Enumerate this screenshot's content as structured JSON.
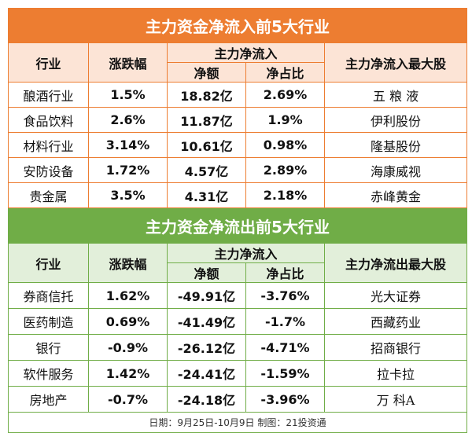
{
  "inflow": {
    "title": "主力资金净流入前5大行业",
    "headers": {
      "industry": "行业",
      "change": "涨跌幅",
      "group": "主力净流入",
      "amount": "净额",
      "ratio": "净占比",
      "top_stock": "主力净流入最大股"
    },
    "rows": [
      {
        "industry": "酿酒行业",
        "change": "1.5%",
        "amount": "18.82亿",
        "ratio": "2.69%",
        "top_stock": "五 粮 液"
      },
      {
        "industry": "食品饮料",
        "change": "2.6%",
        "amount": "11.87亿",
        "ratio": "1.9%",
        "top_stock": "伊利股份"
      },
      {
        "industry": "材料行业",
        "change": "3.14%",
        "amount": "10.61亿",
        "ratio": "0.98%",
        "top_stock": "隆基股份"
      },
      {
        "industry": "安防设备",
        "change": "1.72%",
        "amount": "4.57亿",
        "ratio": "2.89%",
        "top_stock": "海康威视"
      },
      {
        "industry": "贵金属",
        "change": "3.5%",
        "amount": "4.31亿",
        "ratio": "2.18%",
        "top_stock": "赤峰黄金"
      }
    ]
  },
  "outflow": {
    "title": "主力资金净流出前5大行业",
    "headers": {
      "industry": "行业",
      "change": "涨跌幅",
      "group": "主力净流入",
      "amount": "净额",
      "ratio": "净占比",
      "top_stock": "主力净流出最大股"
    },
    "rows": [
      {
        "industry": "券商信托",
        "change": "1.62%",
        "amount": "-49.91亿",
        "ratio": "-3.76%",
        "top_stock": "光大证券"
      },
      {
        "industry": "医药制造",
        "change": "0.69%",
        "amount": "-41.49亿",
        "ratio": "-1.7%",
        "top_stock": "西藏药业"
      },
      {
        "industry": "银行",
        "change": "-0.9%",
        "amount": "-26.12亿",
        "ratio": "-4.71%",
        "top_stock": "招商银行"
      },
      {
        "industry": "软件服务",
        "change": "1.42%",
        "amount": "-24.41亿",
        "ratio": "-1.59%",
        "top_stock": "拉卡拉"
      },
      {
        "industry": "房地产",
        "change": "-0.7%",
        "amount": "-24.18亿",
        "ratio": "-3.96%",
        "top_stock": "万  科A"
      }
    ]
  },
  "footer": "日期：9月25日-10月9日 制图：21投资通",
  "colors": {
    "inflow_accent": "#ED7D31",
    "inflow_header": "#FCE4D6",
    "outflow_accent": "#70AD47",
    "outflow_header": "#E2EFDA"
  }
}
